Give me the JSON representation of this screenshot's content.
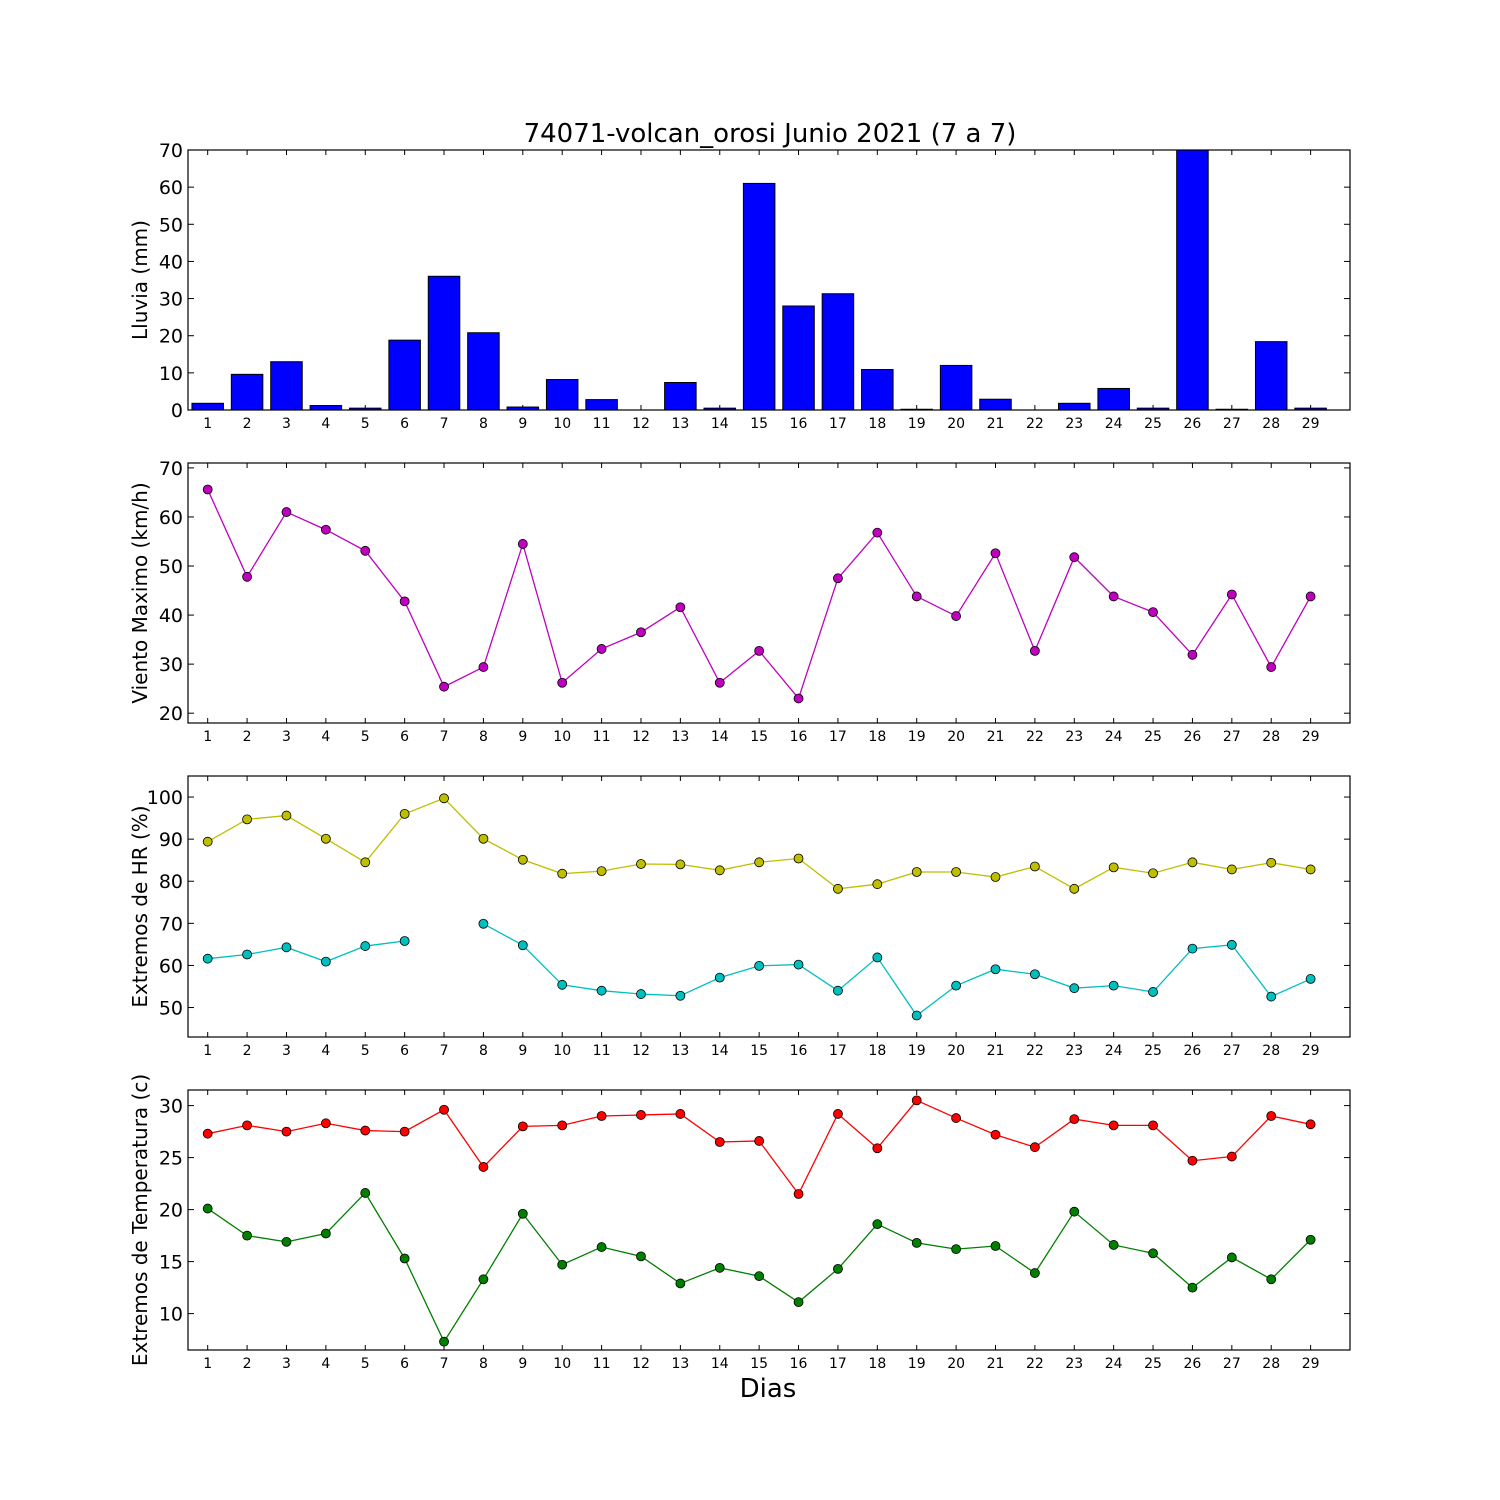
{
  "chart_data": [
    {
      "type": "bar",
      "title": "74071-volcan_orosi Junio 2021  (7 a 7)",
      "ylabel": "Lluvia (mm)",
      "xlabel": "",
      "ylim": [
        0,
        70
      ],
      "yticks": [
        0,
        10,
        20,
        30,
        40,
        50,
        60,
        70
      ],
      "categories": [
        "1",
        "2",
        "3",
        "4",
        "5",
        "6",
        "7",
        "8",
        "9",
        "10",
        "11",
        "12",
        "13",
        "14",
        "15",
        "16",
        "17",
        "18",
        "19",
        "20",
        "21",
        "22",
        "23",
        "24",
        "25",
        "26",
        "27",
        "28",
        "29"
      ],
      "values": [
        1.8,
        9.6,
        13.0,
        1.2,
        0.5,
        18.8,
        36.0,
        20.8,
        0.8,
        8.2,
        2.8,
        0.0,
        7.4,
        0.5,
        61.0,
        28.0,
        31.3,
        10.9,
        0.2,
        12.0,
        2.9,
        0.0,
        1.8,
        5.8,
        0.5,
        70.0,
        0.2,
        18.4,
        0.5
      ],
      "colors": {
        "bar": "#0000ff"
      }
    },
    {
      "type": "line",
      "ylabel": "Viento Maximo (km/h)",
      "xlabel": "",
      "ylim": [
        18,
        71
      ],
      "yticks": [
        20,
        30,
        40,
        50,
        60,
        70
      ],
      "categories": [
        "1",
        "2",
        "3",
        "4",
        "5",
        "6",
        "7",
        "8",
        "9",
        "10",
        "11",
        "12",
        "13",
        "14",
        "15",
        "16",
        "17",
        "18",
        "19",
        "20",
        "21",
        "22",
        "23",
        "24",
        "25",
        "26",
        "27",
        "28",
        "29"
      ],
      "series": [
        {
          "values": [
            65.6,
            47.8,
            61.0,
            57.4,
            53.1,
            42.8,
            25.4,
            29.4,
            54.5,
            26.2,
            33.1,
            36.5,
            41.6,
            26.2,
            32.7,
            23.0,
            47.5,
            56.8,
            43.8,
            39.8,
            52.6,
            32.7,
            51.8,
            43.8,
            40.6,
            31.9,
            44.2,
            29.4,
            43.8
          ],
          "color": "#bf00bf"
        }
      ]
    },
    {
      "type": "line",
      "ylabel": "Extremos de HR (%)",
      "xlabel": "",
      "ylim": [
        43,
        105
      ],
      "yticks": [
        50,
        60,
        70,
        80,
        90,
        100
      ],
      "categories": [
        "1",
        "2",
        "3",
        "4",
        "5",
        "6",
        "7",
        "8",
        "9",
        "10",
        "11",
        "12",
        "13",
        "14",
        "15",
        "16",
        "17",
        "18",
        "19",
        "20",
        "21",
        "22",
        "23",
        "24",
        "25",
        "26",
        "27",
        "28",
        "29"
      ],
      "series": [
        {
          "values": [
            89.4,
            94.7,
            95.6,
            90.1,
            84.5,
            96.0,
            99.7,
            90.1,
            85.1,
            81.8,
            82.4,
            84.1,
            84.0,
            82.6,
            84.5,
            85.4,
            78.2,
            79.3,
            82.2,
            82.2,
            81.0,
            83.5,
            78.2,
            83.3,
            81.9,
            84.5,
            82.8,
            84.4,
            82.8
          ],
          "color": "#bfbf00"
        },
        {
          "values": [
            61.6,
            62.6,
            64.3,
            60.9,
            64.6,
            65.8,
            null,
            69.9,
            64.8,
            55.4,
            54.0,
            53.2,
            52.8,
            57.1,
            59.9,
            60.2,
            54.0,
            61.9,
            48.1,
            55.2,
            59.1,
            57.9,
            54.6,
            55.2,
            53.7,
            64.0,
            64.9,
            52.6,
            56.8
          ],
          "color": "#00bfbf"
        }
      ]
    },
    {
      "type": "line",
      "ylabel": "Extremos de Temperatura (c)",
      "xlabel": "Dias",
      "ylim": [
        6.5,
        31.5
      ],
      "yticks": [
        10,
        15,
        20,
        25,
        30
      ],
      "categories": [
        "1",
        "2",
        "3",
        "4",
        "5",
        "6",
        "7",
        "8",
        "9",
        "10",
        "11",
        "12",
        "13",
        "14",
        "15",
        "16",
        "17",
        "18",
        "19",
        "20",
        "21",
        "22",
        "23",
        "24",
        "25",
        "26",
        "27",
        "28",
        "29"
      ],
      "series": [
        {
          "values": [
            27.3,
            28.1,
            27.5,
            28.3,
            27.6,
            27.5,
            29.6,
            24.1,
            28.0,
            28.1,
            29.0,
            29.1,
            29.2,
            26.5,
            26.6,
            21.5,
            29.2,
            25.9,
            30.5,
            28.8,
            27.2,
            26.0,
            28.7,
            28.1,
            28.1,
            24.7,
            25.1,
            29.0,
            28.2
          ],
          "color": "#ff0000"
        },
        {
          "values": [
            20.1,
            17.5,
            16.9,
            17.7,
            21.6,
            15.3,
            7.3,
            13.3,
            19.6,
            14.7,
            16.4,
            15.5,
            12.9,
            14.4,
            13.6,
            11.1,
            14.3,
            18.6,
            16.8,
            16.2,
            16.5,
            13.9,
            19.8,
            16.6,
            15.8,
            12.5,
            15.4,
            13.3,
            17.1
          ],
          "color": "#007f00"
        }
      ]
    }
  ]
}
